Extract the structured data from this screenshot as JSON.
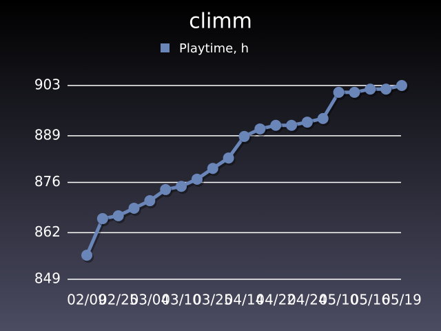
{
  "chart_data": {
    "type": "line",
    "title": "climm",
    "categories": [
      "02/09",
      null,
      "02/25",
      null,
      "03/04",
      null,
      "03/10",
      null,
      "03/25",
      null,
      "04/14",
      null,
      "04/22",
      null,
      "04/24",
      null,
      "05/10",
      null,
      "05/16",
      null,
      "05/19"
    ],
    "series": [
      {
        "name": "Playtime, h",
        "color": "#6a86b8",
        "values": [
          855.7,
          865.9,
          866.7,
          868.8,
          870.9,
          874.0,
          874.9,
          876.9,
          879.9,
          882.8,
          888.8,
          890.9,
          891.9,
          891.9,
          892.8,
          893.8,
          901.1,
          901.1,
          902.0,
          902.0,
          903.0
        ]
      }
    ],
    "ylim": [
      849,
      903
    ],
    "yticks": [
      849,
      862,
      876,
      889,
      903
    ],
    "grid": true,
    "legend": "top"
  }
}
